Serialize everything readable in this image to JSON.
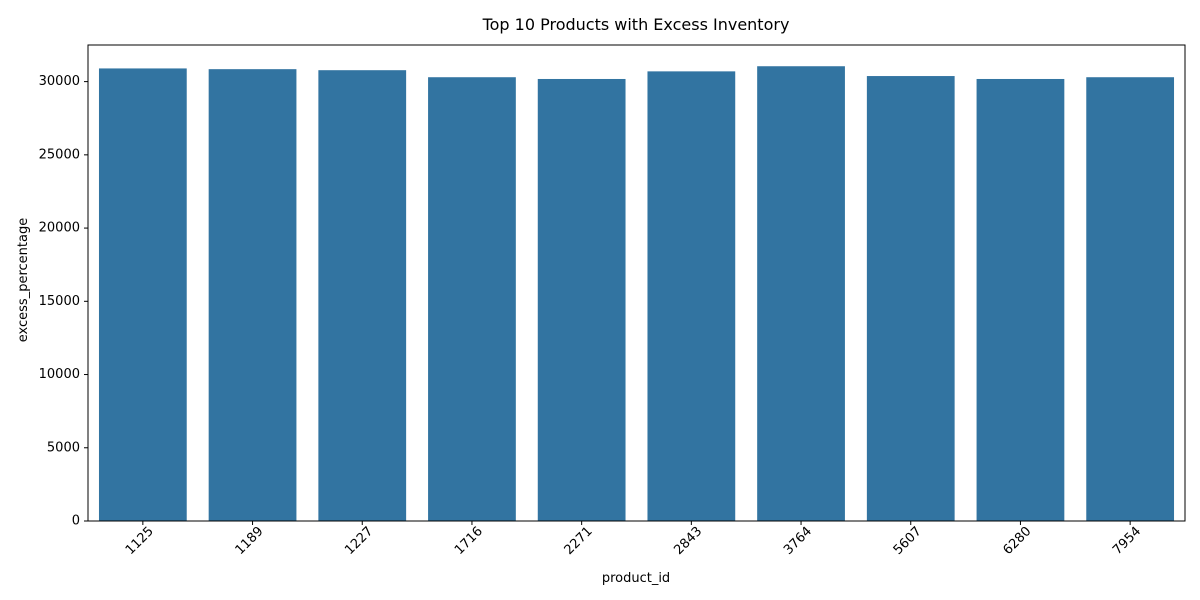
{
  "chart_data": {
    "type": "bar",
    "title": "Top 10 Products with Excess Inventory",
    "xlabel": "product_id",
    "ylabel": "excess_percentage",
    "categories": [
      "1125",
      "1189",
      "1227",
      "1716",
      "2271",
      "2843",
      "3764",
      "5607",
      "6280",
      "7954"
    ],
    "values": [
      30900,
      30850,
      30780,
      30300,
      30180,
      30700,
      31050,
      30380,
      30180,
      30300
    ],
    "ylim": [
      0,
      32500
    ],
    "yticks": [
      0,
      5000,
      10000,
      15000,
      20000,
      25000,
      30000
    ],
    "ytick_labels": [
      "0",
      "5000",
      "10000",
      "15000",
      "20000",
      "25000",
      "30000"
    ],
    "x_tick_rotation": 45,
    "grid": false,
    "bar_color": "#3274a1"
  }
}
